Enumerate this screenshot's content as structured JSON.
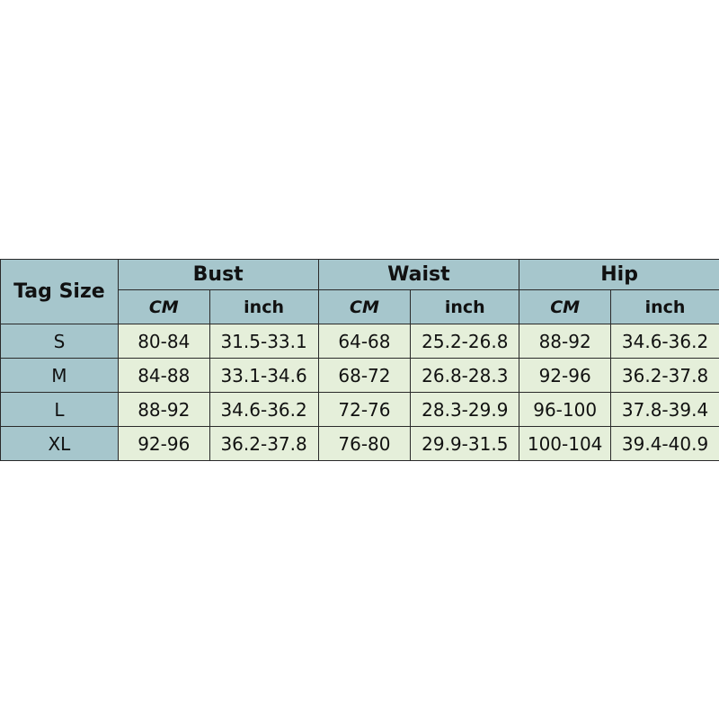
{
  "table": {
    "tag_header": "Tag Size",
    "groups": [
      "Bust",
      "Waist",
      "Hip"
    ],
    "units": [
      "CM",
      "inch"
    ],
    "rows": [
      {
        "size": "S",
        "values": [
          "80-84",
          "31.5-33.1",
          "64-68",
          "25.2-26.8",
          "88-92",
          "34.6-36.2"
        ]
      },
      {
        "size": "M",
        "values": [
          "84-88",
          "33.1-34.6",
          "68-72",
          "26.8-28.3",
          "92-96",
          "36.2-37.8"
        ]
      },
      {
        "size": "L",
        "values": [
          "88-92",
          "34.6-36.2",
          "72-76",
          "28.3-29.9",
          "96-100",
          "37.8-39.4"
        ]
      },
      {
        "size": "XL",
        "values": [
          "92-96",
          "36.2-37.8",
          "76-80",
          "29.9-31.5",
          "100-104",
          "39.4-40.9"
        ]
      }
    ],
    "colors": {
      "header": "#a6c6cc",
      "cell": "#e5efda",
      "border": "#2a2a2a"
    }
  }
}
